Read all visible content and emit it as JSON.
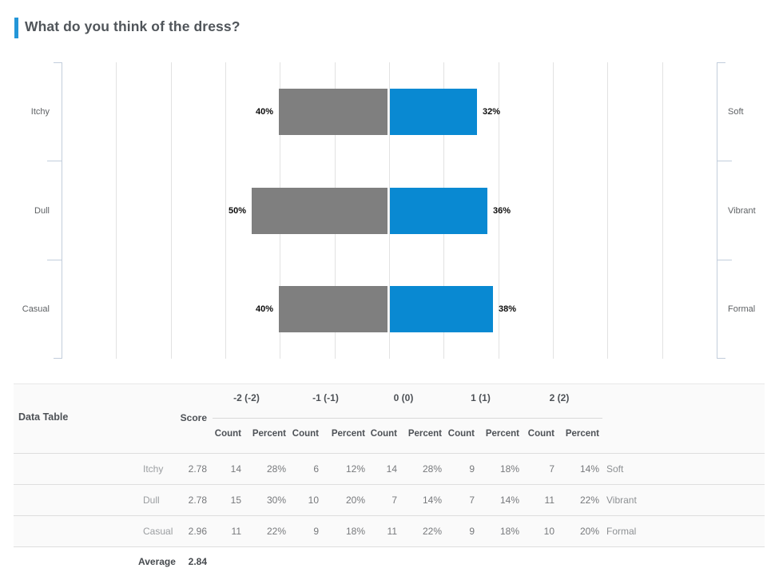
{
  "title": {
    "text": "What do you think of the dress?"
  },
  "colors": {
    "accent": "#2496d8",
    "bar_negative": "#7f7f7f",
    "bar_positive": "#0989d2",
    "axis": "#c2cddc",
    "gridline": "#e2e2e2",
    "table_background": "#fafafa"
  },
  "chart_data": {
    "type": "bar",
    "subtype": "diverging-horizontal-bipolar",
    "title": "What do you think of the dress?",
    "grid": true,
    "axis_pct_per_gridline": 20,
    "xlim_pct": 120,
    "rows": [
      {
        "left_label": "Itchy",
        "right_label": "Soft",
        "left_pct": 40,
        "right_pct": 32,
        "left_value": "40%",
        "right_value": "32%"
      },
      {
        "left_label": "Dull",
        "right_label": "Vibrant",
        "left_pct": 50,
        "right_pct": 36,
        "left_value": "50%",
        "right_value": "36%"
      },
      {
        "left_label": "Casual",
        "right_label": "Formal",
        "left_pct": 40,
        "right_pct": 38,
        "left_value": "40%",
        "right_value": "38%"
      }
    ],
    "series": [
      {
        "name": "negative-side",
        "color": "#7f7f7f",
        "values": [
          40,
          50,
          40
        ]
      },
      {
        "name": "positive-side",
        "color": "#0989d2",
        "values": [
          32,
          36,
          38
        ]
      }
    ]
  },
  "table": {
    "title": "Data Table",
    "score_label": "Score",
    "group_headers": [
      "-2 (-2)",
      "-1 (-1)",
      "0 (0)",
      "1 (1)",
      "2 (2)"
    ],
    "sub_headers": [
      "Count",
      "Percent",
      "Count",
      "Percent",
      "Count",
      "Percent",
      "Count",
      "Percent",
      "Count",
      "Percent"
    ],
    "rows": [
      {
        "label": "Itchy",
        "score": "2.78",
        "cells": [
          "14",
          "28%",
          "6",
          "12%",
          "14",
          "28%",
          "9",
          "18%",
          "7",
          "14%"
        ],
        "side": "Soft"
      },
      {
        "label": "Dull",
        "score": "2.78",
        "cells": [
          "15",
          "30%",
          "10",
          "20%",
          "7",
          "14%",
          "7",
          "14%",
          "11",
          "22%"
        ],
        "side": "Vibrant"
      },
      {
        "label": "Casual",
        "score": "2.96",
        "cells": [
          "11",
          "22%",
          "9",
          "18%",
          "11",
          "22%",
          "9",
          "18%",
          "10",
          "20%"
        ],
        "side": "Formal"
      }
    ],
    "average_label": "Average",
    "average_value": "2.84"
  }
}
